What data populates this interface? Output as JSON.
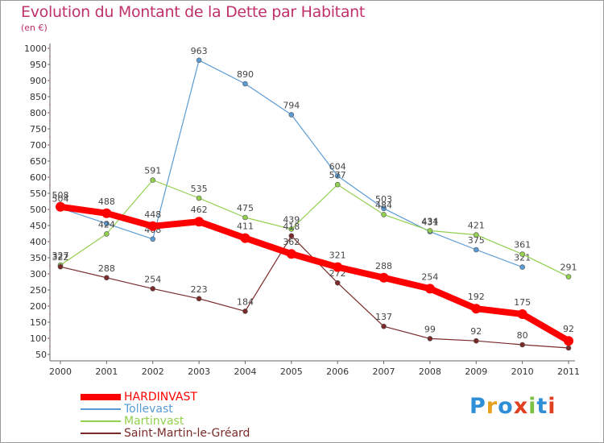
{
  "header": {
    "title": "Evolution du Montant de la Dette par Habitant",
    "subtitle": "(en €)"
  },
  "logo": {
    "text": "Proxiti",
    "colors": [
      "#2f8fd6",
      "#e8a020",
      "#2f8fd6",
      "#e04020",
      "#7cc242",
      "#2f8fd6",
      "#e04020"
    ]
  },
  "chart_data": {
    "type": "line",
    "title": "Evolution du Montant de la Dette par Habitant",
    "subtitle": "(en €)",
    "xlabel": "",
    "ylabel": "",
    "x": [
      "2000",
      "2001",
      "2002",
      "2003",
      "2004",
      "2005",
      "2006",
      "2007",
      "2008",
      "2009",
      "2010",
      "2011"
    ],
    "yticks": [
      "50",
      "100",
      "150",
      "200",
      "250",
      "300",
      "350",
      "400",
      "450",
      "500",
      "550",
      "600",
      "650",
      "700",
      "750",
      "800",
      "850",
      "900",
      "950",
      "1000"
    ],
    "ylim": [
      50,
      1000
    ],
    "grid": false,
    "legend_position": "bottom-left",
    "series": [
      {
        "name": "Tollevast",
        "color": "#5b9bd5",
        "width": 1.2,
        "values": [
          504,
          456,
          408,
          963,
          890,
          794,
          604,
          503,
          431,
          375,
          321,
          null
        ],
        "labels": [
          "504",
          "",
          "408",
          "963",
          "890",
          "794",
          "604",
          "503",
          "431",
          "375",
          "321",
          ""
        ]
      },
      {
        "name": "Martinvast",
        "color": "#92d050",
        "width": 1.2,
        "values": [
          327,
          424,
          591,
          535,
          475,
          439,
          577,
          484,
          434,
          421,
          361,
          291
        ],
        "labels": [
          "327",
          "424",
          "591",
          "535",
          "475",
          "439",
          "577",
          "484",
          "434",
          "421",
          "361",
          "291"
        ]
      },
      {
        "name": "Saint-Martin-le-Gréard",
        "color": "#7b2a2a",
        "width": 1.2,
        "values": [
          322,
          288,
          254,
          223,
          184,
          418,
          272,
          137,
          99,
          92,
          80,
          70
        ],
        "labels": [
          "322",
          "288",
          "254",
          "223",
          "184",
          "418",
          "272",
          "137",
          "99",
          "92",
          "80",
          ""
        ]
      },
      {
        "name": "HARDINVAST",
        "color": "#ff0000",
        "width": 8,
        "values": [
          508,
          488,
          448,
          462,
          411,
          362,
          321,
          288,
          254,
          192,
          175,
          92
        ],
        "labels": [
          "508",
          "488",
          "448",
          "462",
          "411",
          "362",
          "321",
          "288",
          "254",
          "192",
          "175",
          "92"
        ]
      }
    ],
    "legend": [
      {
        "name": "HARDINVAST",
        "color": "#ff0000",
        "swatch_h": 8
      },
      {
        "name": "Tollevast",
        "color": "#5b9bd5",
        "swatch_h": 2
      },
      {
        "name": "Martinvast",
        "color": "#92d050",
        "swatch_h": 2
      },
      {
        "name": "Saint-Martin-le-Gréard",
        "color": "#7b2a2a",
        "swatch_h": 2
      }
    ]
  }
}
